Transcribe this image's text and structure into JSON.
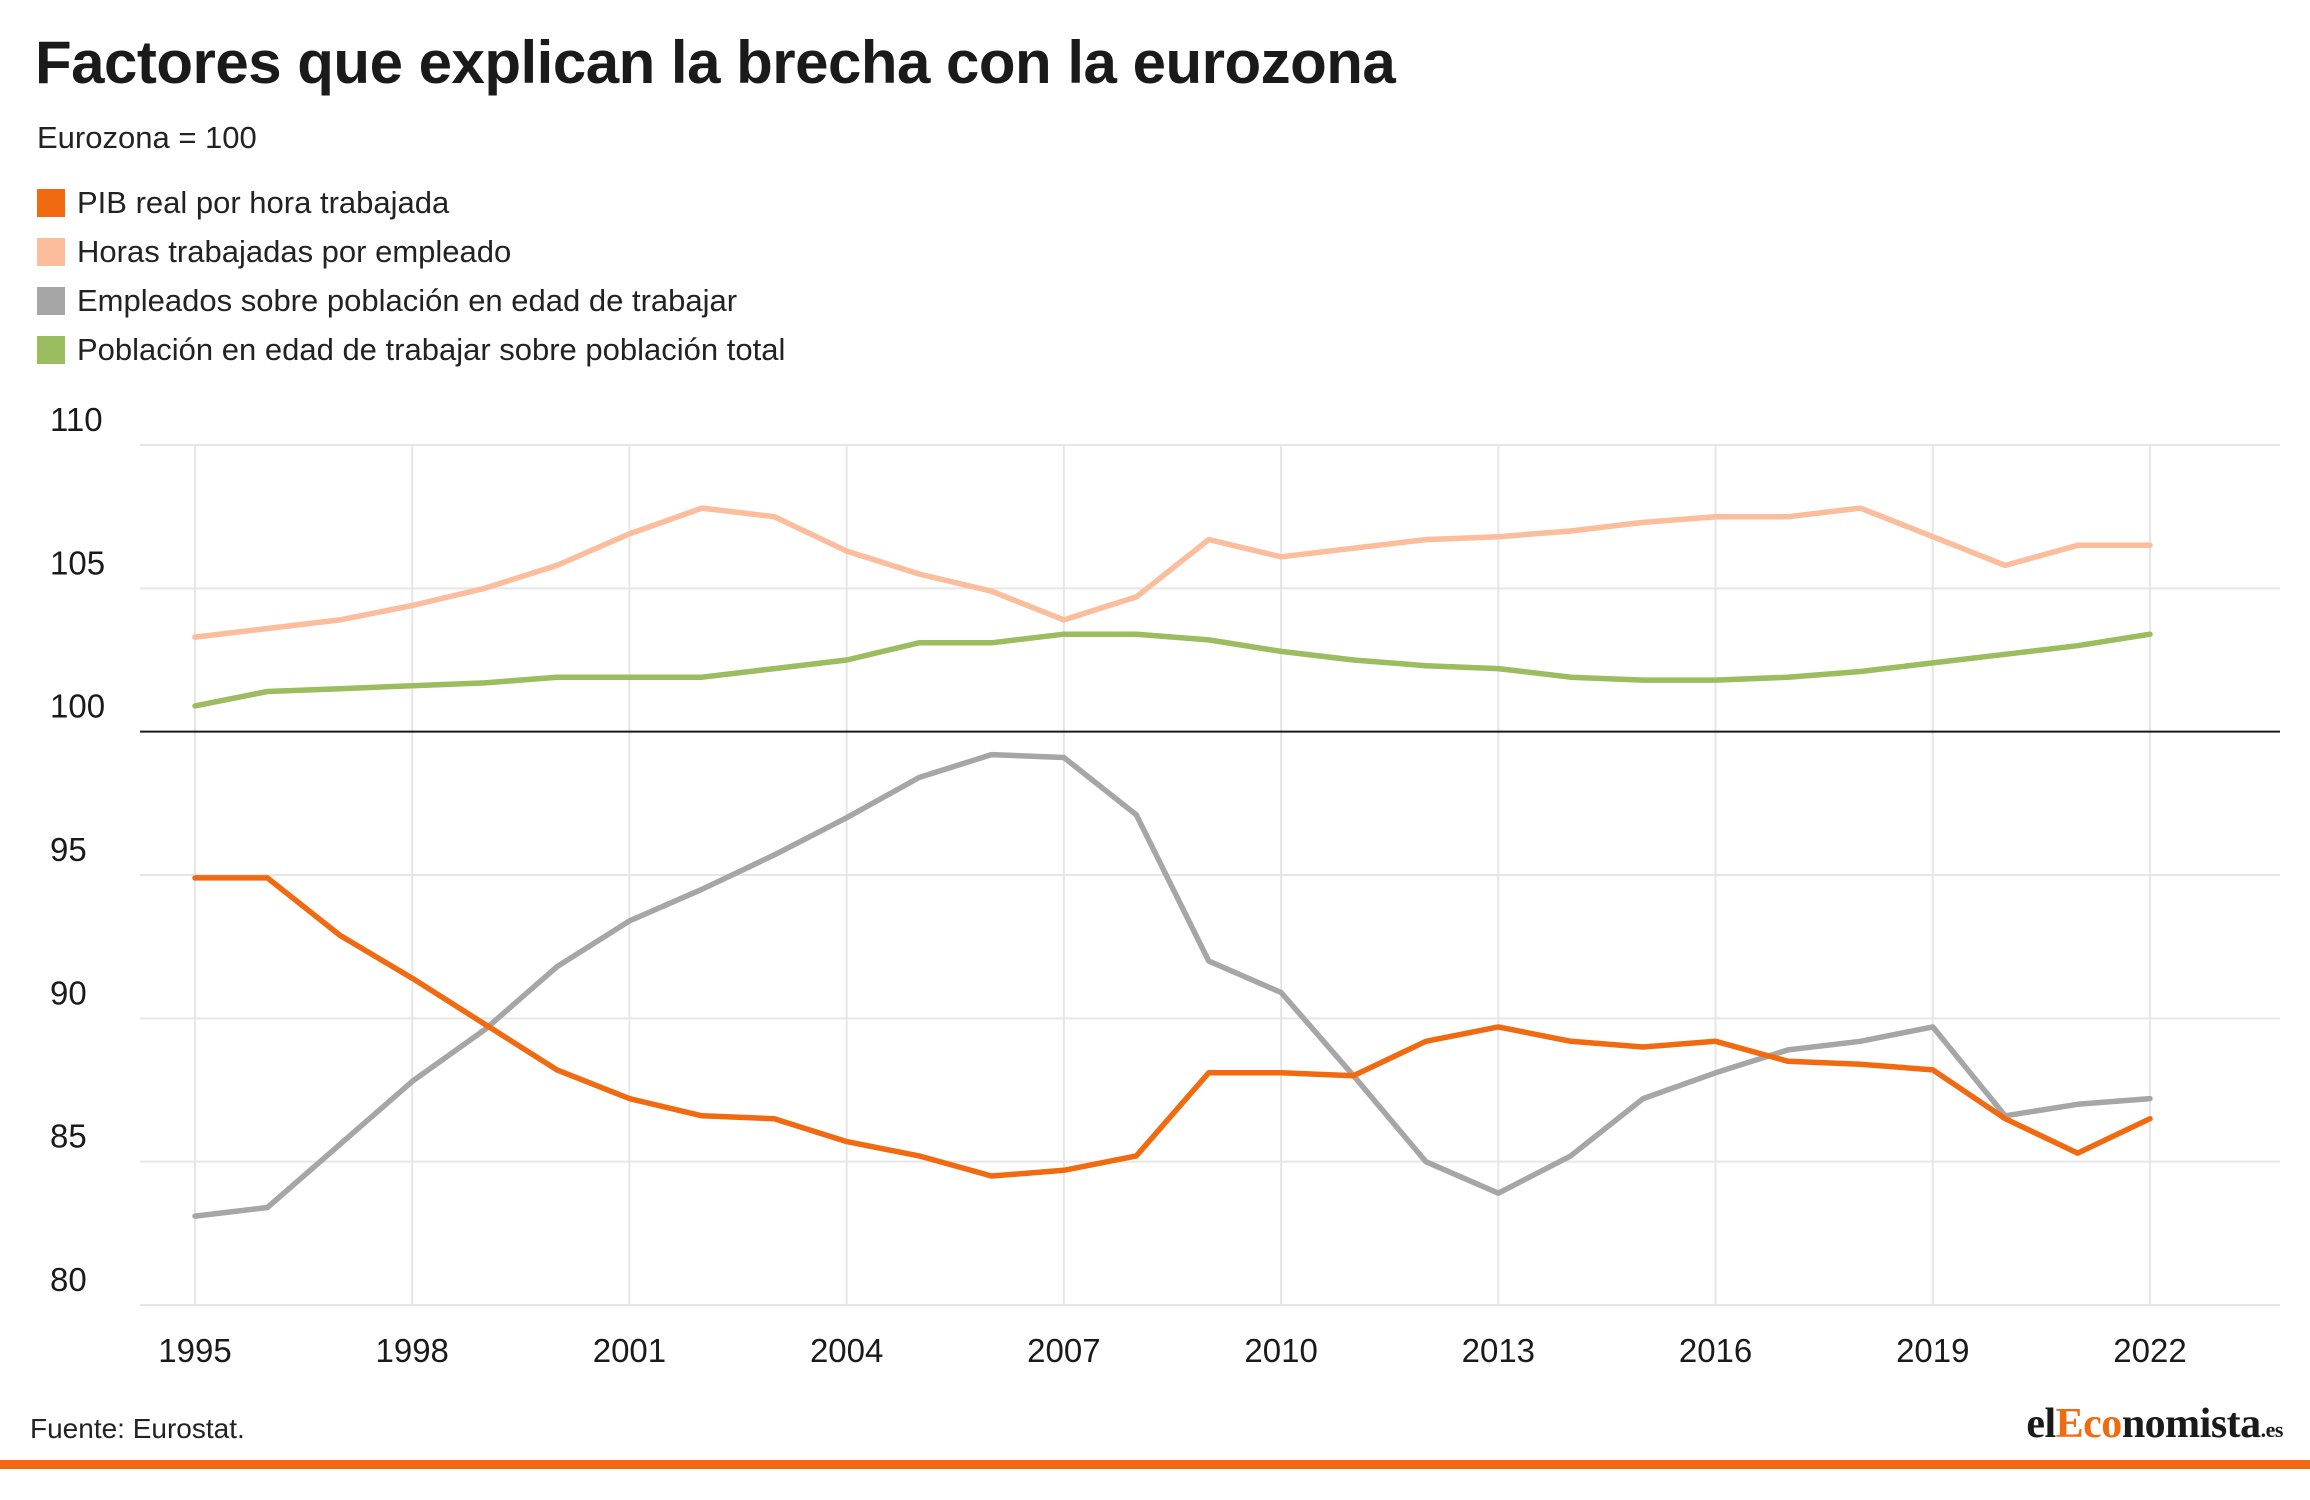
{
  "chart_data": {
    "type": "line",
    "title": "Factores que explican la brecha con la eurozona",
    "subtitle": "Eurozona = 100",
    "x": [
      1995,
      1996,
      1997,
      1998,
      1999,
      2000,
      2001,
      2002,
      2003,
      2004,
      2005,
      2006,
      2007,
      2008,
      2009,
      2010,
      2011,
      2012,
      2013,
      2014,
      2015,
      2016,
      2017,
      2018,
      2019,
      2020,
      2021,
      2022
    ],
    "x_ticks": [
      "1995",
      "1998",
      "2001",
      "2004",
      "2007",
      "2010",
      "2013",
      "2016",
      "2019",
      "2022"
    ],
    "y_ticks": [
      "80",
      "85",
      "90",
      "95",
      "100",
      "105",
      "110"
    ],
    "ylim": [
      80,
      110
    ],
    "reference_line": 100,
    "grid": true,
    "legend_position": "top-left",
    "series": [
      {
        "name": "PIB real por hora trabajada",
        "color": "#f26a10",
        "values": [
          94.9,
          94.9,
          92.9,
          91.4,
          89.8,
          88.2,
          87.2,
          86.6,
          86.5,
          85.7,
          85.2,
          84.5,
          84.7,
          85.2,
          88.1,
          88.1,
          88.0,
          89.2,
          89.7,
          89.2,
          89.0,
          89.2,
          88.5,
          88.4,
          88.2,
          86.5,
          85.3,
          86.5
        ]
      },
      {
        "name": "Horas trabajadas por empleado",
        "color": "#fbbd9c",
        "values": [
          103.3,
          103.6,
          103.9,
          104.4,
          105.0,
          105.8,
          106.9,
          107.8,
          107.5,
          106.3,
          105.5,
          104.9,
          103.9,
          104.7,
          106.7,
          106.1,
          106.4,
          106.7,
          106.8,
          107.0,
          107.3,
          107.5,
          107.5,
          107.8,
          106.8,
          105.8,
          106.5,
          106.5
        ]
      },
      {
        "name": "Empleados sobre población en edad de trabajar",
        "color": "#a6a6a6",
        "values": [
          83.1,
          83.4,
          85.6,
          87.8,
          89.6,
          91.8,
          93.4,
          94.5,
          95.7,
          97.0,
          98.4,
          99.2,
          99.1,
          97.1,
          92.0,
          90.9,
          88.0,
          85.0,
          83.9,
          85.2,
          87.2,
          88.1,
          88.9,
          89.2,
          89.7,
          86.6,
          87.0,
          87.2
        ]
      },
      {
        "name": "Población en edad de trabajar sobre población total",
        "color": "#9bbc5f",
        "values": [
          100.9,
          101.4,
          101.5,
          101.6,
          101.7,
          101.9,
          101.9,
          101.9,
          102.2,
          102.5,
          103.1,
          103.1,
          103.4,
          103.4,
          103.2,
          102.8,
          102.5,
          102.3,
          102.2,
          101.9,
          101.8,
          101.8,
          101.9,
          102.1,
          102.4,
          102.7,
          103.0,
          103.4
        ]
      }
    ]
  },
  "footer": {
    "source": "Fuente: Eurostat.",
    "logo_prefix": "el",
    "logo_accent": "Eco",
    "logo_rest": "nomista",
    "logo_suffix": ".es"
  }
}
